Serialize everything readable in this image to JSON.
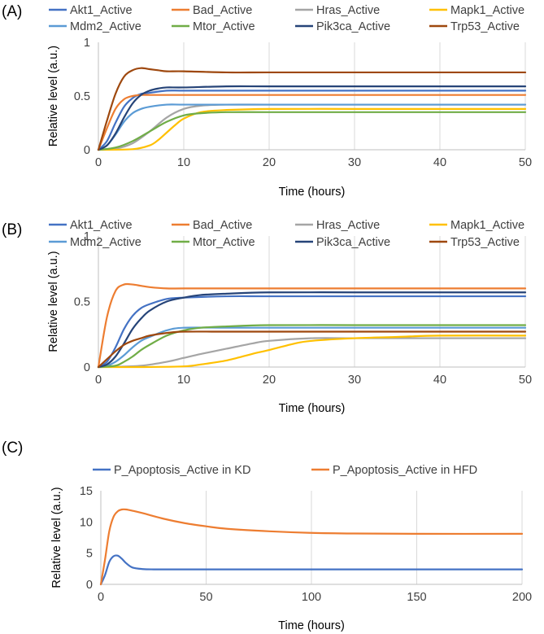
{
  "chart_data": [
    {
      "panel": "(A)",
      "type": "line",
      "xlabel": "Time (hours)",
      "ylabel": "Relative level (a.u.)",
      "xlim": [
        0,
        50
      ],
      "ylim": [
        0,
        1
      ],
      "xticks": [
        0,
        10,
        20,
        30,
        40,
        50
      ],
      "yticks": [
        0,
        0.5,
        1
      ],
      "grid": "vertical",
      "legend": "top",
      "series": [
        {
          "name": "Akt1_Active",
          "color": "#4472C4",
          "x": [
            0,
            1,
            2,
            3,
            4,
            5,
            6,
            8,
            10,
            15,
            20,
            30,
            40,
            50
          ],
          "y": [
            0,
            0.08,
            0.25,
            0.4,
            0.48,
            0.52,
            0.53,
            0.55,
            0.55,
            0.55,
            0.55,
            0.55,
            0.55,
            0.55
          ]
        },
        {
          "name": "Bad_Active",
          "color": "#ED7D31",
          "x": [
            0,
            1,
            2,
            3,
            4,
            5,
            6,
            8,
            10,
            15,
            20,
            30,
            40,
            50
          ],
          "y": [
            0,
            0.2,
            0.38,
            0.47,
            0.5,
            0.51,
            0.51,
            0.51,
            0.51,
            0.51,
            0.51,
            0.51,
            0.51,
            0.51
          ]
        },
        {
          "name": "Hras_Active",
          "color": "#A5A5A5",
          "x": [
            0,
            2,
            4,
            6,
            8,
            10,
            12,
            15,
            20,
            30,
            40,
            50
          ],
          "y": [
            0,
            0.01,
            0.06,
            0.17,
            0.3,
            0.38,
            0.41,
            0.42,
            0.42,
            0.42,
            0.42,
            0.42
          ]
        },
        {
          "name": "Mapk1_Active",
          "color": "#FFC000",
          "x": [
            0,
            4,
            6,
            7,
            8,
            9,
            10,
            12,
            15,
            20,
            30,
            40,
            50
          ],
          "y": [
            0,
            0.005,
            0.04,
            0.09,
            0.16,
            0.23,
            0.29,
            0.35,
            0.37,
            0.38,
            0.38,
            0.38,
            0.38
          ]
        },
        {
          "name": "Mdm2_Active",
          "color": "#5B9BD5",
          "x": [
            0,
            1,
            2,
            3,
            4,
            5,
            6,
            8,
            10,
            15,
            20,
            30,
            40,
            50
          ],
          "y": [
            0,
            0.04,
            0.14,
            0.26,
            0.34,
            0.38,
            0.4,
            0.42,
            0.42,
            0.42,
            0.42,
            0.42,
            0.42,
            0.42
          ]
        },
        {
          "name": "Mtor_Active",
          "color": "#70AD47",
          "x": [
            0,
            2,
            4,
            6,
            8,
            10,
            12,
            15,
            20,
            30,
            40,
            50
          ],
          "y": [
            0,
            0.02,
            0.08,
            0.17,
            0.26,
            0.32,
            0.34,
            0.35,
            0.35,
            0.35,
            0.35,
            0.35
          ]
        },
        {
          "name": "Pik3ca_Active",
          "color": "#264478",
          "x": [
            0,
            1,
            2,
            3,
            4,
            5,
            6,
            7,
            8,
            10,
            15,
            20,
            30,
            40,
            50
          ],
          "y": [
            0,
            0.04,
            0.15,
            0.3,
            0.43,
            0.51,
            0.55,
            0.57,
            0.58,
            0.58,
            0.59,
            0.59,
            0.59,
            0.59,
            0.59
          ]
        },
        {
          "name": "Trp53_Active",
          "color": "#9E480E",
          "x": [
            0,
            1,
            2,
            3,
            4,
            5,
            6,
            7,
            8,
            10,
            15,
            20,
            30,
            40,
            50
          ],
          "y": [
            0,
            0.27,
            0.52,
            0.68,
            0.74,
            0.76,
            0.75,
            0.74,
            0.73,
            0.73,
            0.72,
            0.72,
            0.72,
            0.72,
            0.72
          ]
        }
      ]
    },
    {
      "panel": "(B)",
      "type": "line",
      "xlabel": "Time (hours)",
      "ylabel": "Relative level (a.u.)",
      "xlim": [
        0,
        50
      ],
      "ylim": [
        0,
        1
      ],
      "xticks": [
        0,
        10,
        20,
        30,
        40,
        50
      ],
      "yticks": [
        0,
        0.5,
        1
      ],
      "grid": "vertical",
      "legend": "top",
      "series": [
        {
          "name": "Akt1_Active",
          "color": "#4472C4",
          "x": [
            0,
            1,
            2,
            3,
            4,
            5,
            6,
            8,
            10,
            15,
            20,
            30,
            40,
            50
          ],
          "y": [
            0,
            0.04,
            0.15,
            0.29,
            0.39,
            0.45,
            0.48,
            0.52,
            0.53,
            0.54,
            0.54,
            0.54,
            0.54,
            0.54
          ]
        },
        {
          "name": "Bad_Active",
          "color": "#ED7D31",
          "x": [
            0,
            1,
            2,
            3,
            4,
            5,
            6,
            8,
            10,
            15,
            20,
            30,
            40,
            50
          ],
          "y": [
            0,
            0.38,
            0.58,
            0.63,
            0.63,
            0.62,
            0.61,
            0.6,
            0.6,
            0.6,
            0.6,
            0.6,
            0.6,
            0.6
          ]
        },
        {
          "name": "Hras_Active",
          "color": "#A5A5A5",
          "x": [
            0,
            2,
            5,
            8,
            10,
            12,
            15,
            18,
            20,
            25,
            30,
            40,
            50
          ],
          "y": [
            0,
            0.002,
            0.01,
            0.04,
            0.07,
            0.1,
            0.14,
            0.18,
            0.2,
            0.22,
            0.22,
            0.22,
            0.22
          ]
        },
        {
          "name": "Mapk1_Active",
          "color": "#FFC000",
          "x": [
            0,
            5,
            10,
            12,
            15,
            18,
            20,
            23,
            25,
            30,
            35,
            40,
            50
          ],
          "y": [
            0,
            0,
            0.005,
            0.02,
            0.05,
            0.1,
            0.13,
            0.18,
            0.2,
            0.22,
            0.23,
            0.24,
            0.24
          ]
        },
        {
          "name": "Mdm2_Active",
          "color": "#5B9BD5",
          "x": [
            0,
            1,
            2,
            3,
            4,
            5,
            6,
            8,
            10,
            15,
            20,
            30,
            40,
            50
          ],
          "y": [
            0,
            0.01,
            0.04,
            0.09,
            0.15,
            0.2,
            0.23,
            0.28,
            0.3,
            0.3,
            0.3,
            0.3,
            0.3,
            0.3
          ]
        },
        {
          "name": "Mtor_Active",
          "color": "#70AD47",
          "x": [
            0,
            2,
            3,
            4,
            5,
            6,
            8,
            10,
            12,
            15,
            20,
            30,
            40,
            50
          ],
          "y": [
            0,
            0.01,
            0.04,
            0.08,
            0.13,
            0.17,
            0.24,
            0.28,
            0.3,
            0.31,
            0.32,
            0.32,
            0.32,
            0.32
          ]
        },
        {
          "name": "Pik3ca_Active",
          "color": "#264478",
          "x": [
            0,
            1,
            2,
            3,
            4,
            5,
            6,
            8,
            10,
            12,
            15,
            20,
            30,
            40,
            50
          ],
          "y": [
            0,
            0.02,
            0.08,
            0.18,
            0.29,
            0.37,
            0.43,
            0.5,
            0.53,
            0.55,
            0.56,
            0.57,
            0.57,
            0.57,
            0.57
          ]
        },
        {
          "name": "Trp53_Active",
          "color": "#9E480E",
          "x": [
            0,
            1,
            2,
            3,
            4,
            5,
            6,
            8,
            10,
            15,
            20,
            30,
            40,
            50
          ],
          "y": [
            0,
            0.06,
            0.12,
            0.17,
            0.2,
            0.22,
            0.24,
            0.26,
            0.27,
            0.27,
            0.27,
            0.27,
            0.27,
            0.27
          ]
        }
      ]
    },
    {
      "panel": "(C)",
      "type": "line",
      "xlabel": "Time (hours)",
      "ylabel": "Relative level (a.u.)",
      "xlim": [
        0,
        200
      ],
      "ylim": [
        0,
        15
      ],
      "xticks": [
        0,
        50,
        100,
        150,
        200
      ],
      "yticks": [
        0,
        5,
        10,
        15
      ],
      "grid": "vertical",
      "legend": "top",
      "series": [
        {
          "name": "P_Apoptosis_Active in KD",
          "color": "#4472C4",
          "x": [
            0,
            2,
            4,
            6,
            8,
            10,
            12,
            15,
            20,
            25,
            30,
            50,
            100,
            150,
            200
          ],
          "y": [
            0,
            1.5,
            3.6,
            4.5,
            4.6,
            4.1,
            3.4,
            2.7,
            2.45,
            2.4,
            2.4,
            2.4,
            2.4,
            2.4,
            2.4
          ]
        },
        {
          "name": "P_Apoptosis_Active in HFD",
          "color": "#ED7D31",
          "x": [
            0,
            2,
            4,
            6,
            8,
            10,
            12,
            15,
            20,
            30,
            40,
            50,
            60,
            80,
            100,
            120,
            150,
            200
          ],
          "y": [
            0,
            4,
            8.5,
            10.8,
            11.7,
            12,
            12,
            11.8,
            11.4,
            10.5,
            9.8,
            9.3,
            8.9,
            8.5,
            8.25,
            8.15,
            8.1,
            8.1
          ]
        }
      ]
    }
  ]
}
